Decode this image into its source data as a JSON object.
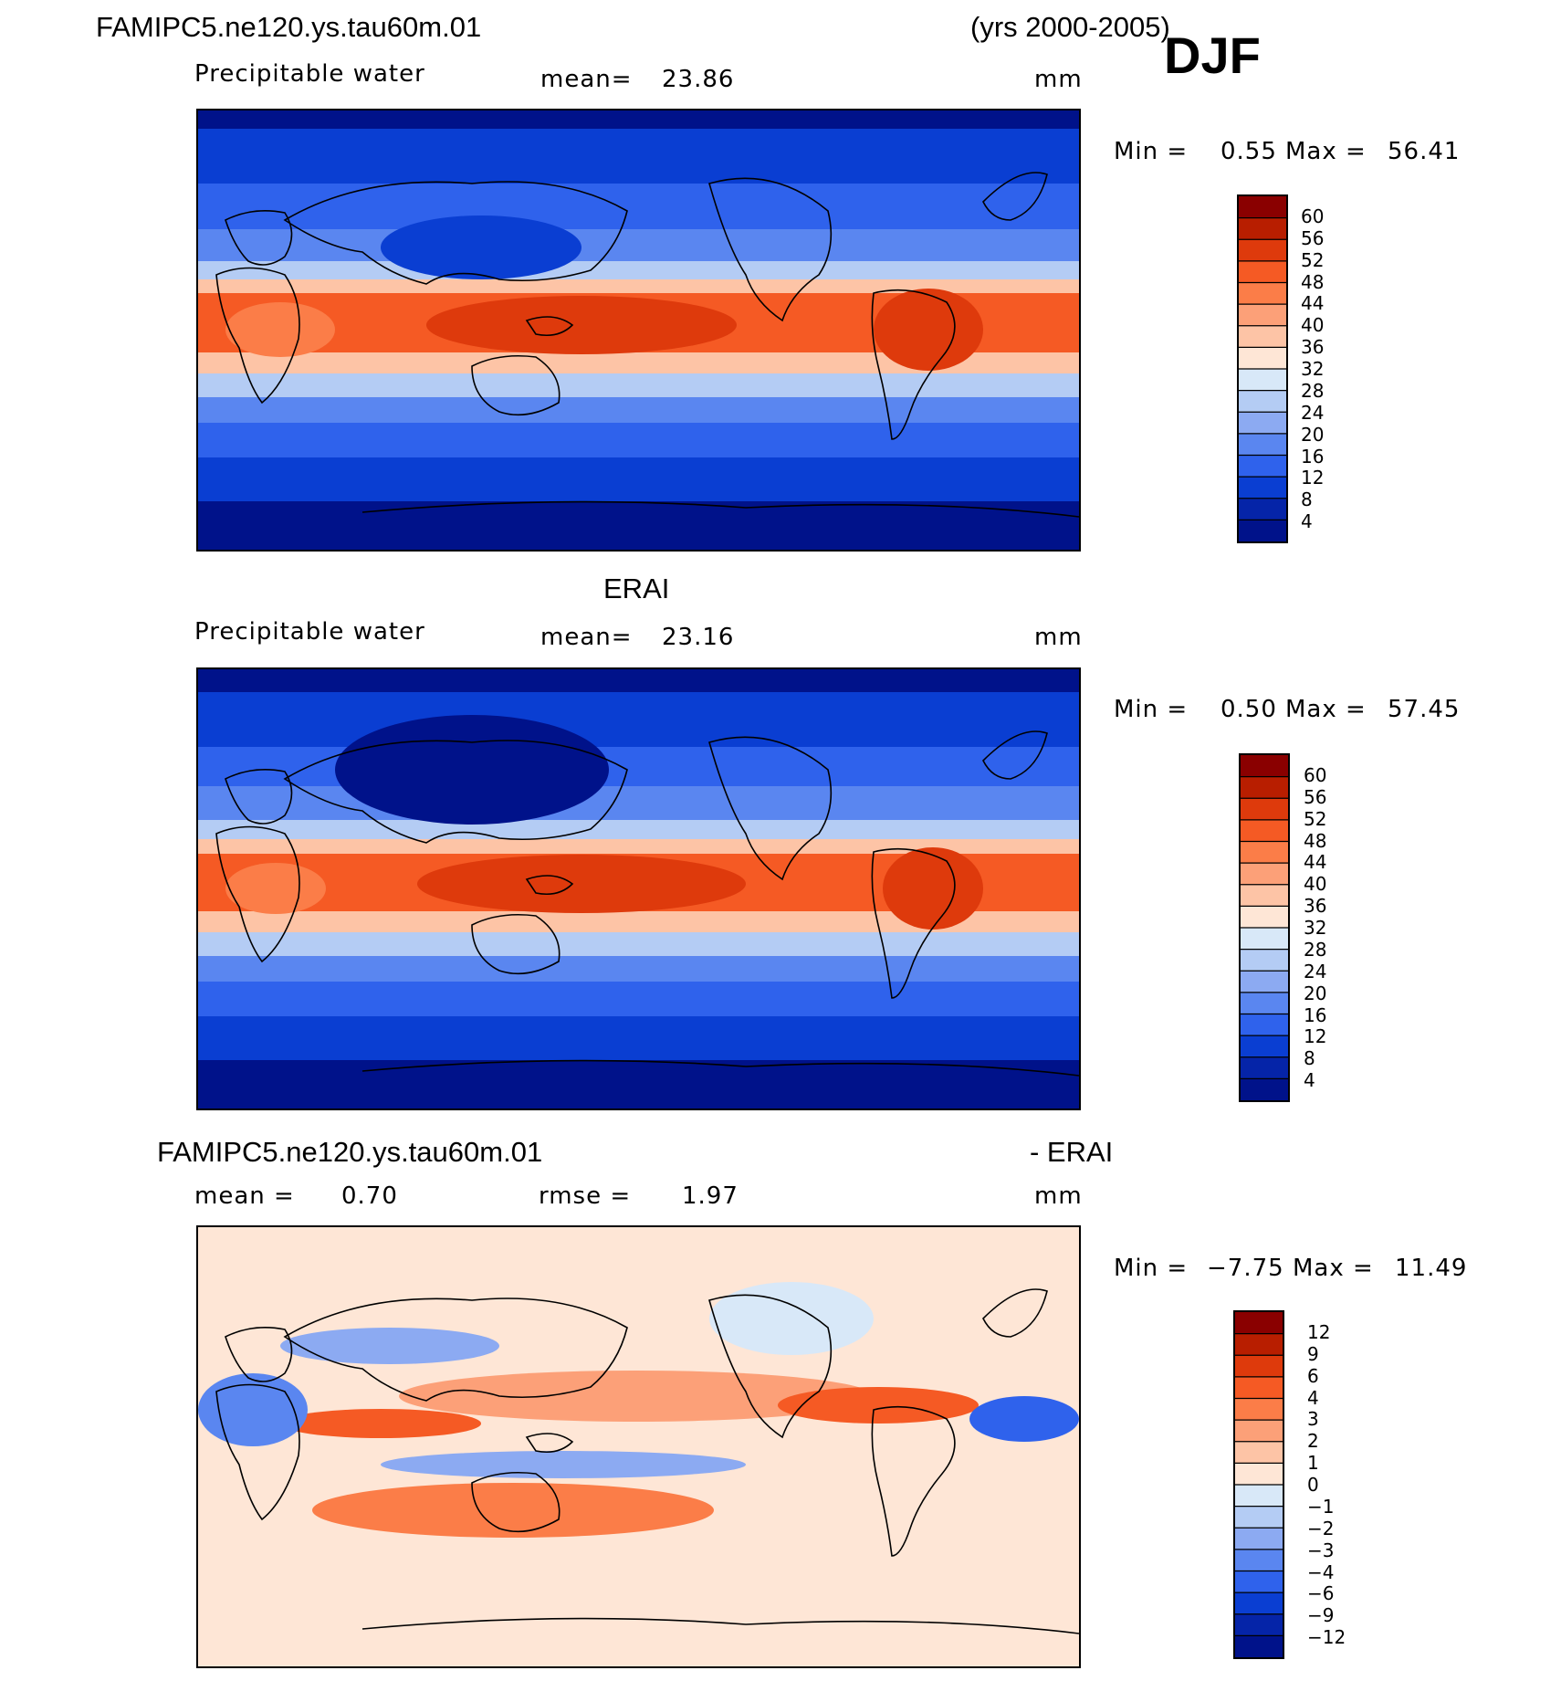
{
  "header": {
    "case_name": "FAMIPC5.ne120.ys.tau60m.01",
    "years": "(yrs 2000-2005)",
    "season": "DJF"
  },
  "panels": [
    {
      "title": "",
      "variable": "Precipitable water",
      "mean_label": "mean=",
      "mean_value": "23.86",
      "units": "mm",
      "min_label": "Min =",
      "min_value": "0.55",
      "max_label": "Max =",
      "max_value": "56.41",
      "colorbar_ticks": [
        "60",
        "56",
        "52",
        "48",
        "44",
        "40",
        "36",
        "32",
        "28",
        "24",
        "20",
        "16",
        "12",
        "8",
        "4"
      ]
    },
    {
      "title": "ERAI",
      "variable": "Precipitable water",
      "mean_label": "mean=",
      "mean_value": "23.16",
      "units": "mm",
      "min_label": "Min =",
      "min_value": "0.50",
      "max_label": "Max =",
      "max_value": "57.45",
      "colorbar_ticks": [
        "60",
        "56",
        "52",
        "48",
        "44",
        "40",
        "36",
        "32",
        "28",
        "24",
        "20",
        "16",
        "12",
        "8",
        "4"
      ]
    },
    {
      "title_left": "FAMIPC5.ne120.ys.tau60m.01",
      "title_right": "- ERAI",
      "mean_label": "mean =",
      "mean_value": "0.70",
      "rmse_label": "rmse =",
      "rmse_value": "1.97",
      "units": "mm",
      "min_label": "Min =",
      "min_value": "−7.75",
      "max_label": "Max =",
      "max_value": "11.49",
      "colorbar_ticks": [
        "12",
        "9",
        "6",
        "4",
        "3",
        "2",
        "1",
        "0",
        "−1",
        "−2",
        "−3",
        "−4",
        "−6",
        "−9",
        "−12"
      ]
    }
  ],
  "colors": {
    "scale": [
      "#8a0000",
      "#b81e00",
      "#de3a0c",
      "#f55a24",
      "#fb7d48",
      "#fca078",
      "#fdc4a6",
      "#fee6d6",
      "#d8e8f8",
      "#b4ccf4",
      "#8caaf2",
      "#5a86f0",
      "#2f62ec",
      "#0a3ed2",
      "#0524a8",
      "#00128a"
    ],
    "coast": "#000000"
  }
}
